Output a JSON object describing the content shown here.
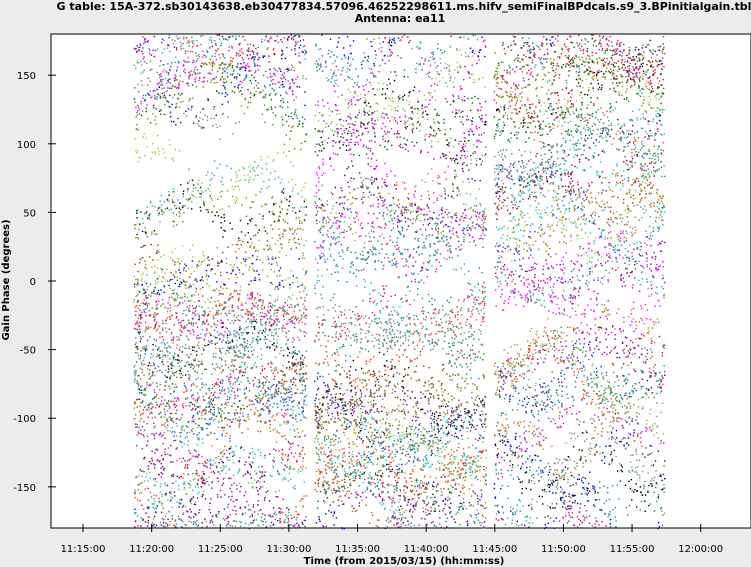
{
  "chart_data": {
    "type": "scatter",
    "title": "G table: 15A-372.sb30143638.eb30477834.57096.46252298611.ms.hifv_semiFinalBPdcals.s9_3.BPinitialgain.tbl",
    "subtitle": "Antenna: ea11",
    "xlabel": "Time (from 2015/03/15) (hh:mm:ss)",
    "ylabel": "Gain Phase (degrees)",
    "x_ticks": [
      "11:15:00",
      "11:20:00",
      "11:25:00",
      "11:30:00",
      "11:35:00",
      "11:40:00",
      "11:45:00",
      "11:50:00",
      "11:55:00",
      "12:00:00"
    ],
    "y_ticks": [
      150,
      100,
      50,
      0,
      -50,
      -100,
      -150
    ],
    "xlim": [
      "11:12:40",
      "12:03:40"
    ],
    "ylim": [
      -180,
      180
    ],
    "grid": false,
    "scan_segments": [
      {
        "start": "11:18:40",
        "end": "11:31:15"
      },
      {
        "start": "11:31:50",
        "end": "11:44:20"
      },
      {
        "start": "11:44:55",
        "end": "11:57:20"
      }
    ],
    "series_colors": [
      "#000000",
      "#8b008b",
      "#b000b0",
      "#d000d0",
      "#ff00ff",
      "#0000cc",
      "#1e5bd0",
      "#008b8b",
      "#00a0a0",
      "#20b2aa",
      "#00cdcd",
      "#006400",
      "#2e8b57",
      "#7cb342",
      "#9acd32",
      "#808000",
      "#b8860b",
      "#cc6600",
      "#8b4513",
      "#ff4500",
      "#dc143c",
      "#808080",
      "#4b0082",
      "#5f9ea0"
    ],
    "note_points": "dense phase scatter, one series per spectral window/correlation"
  }
}
